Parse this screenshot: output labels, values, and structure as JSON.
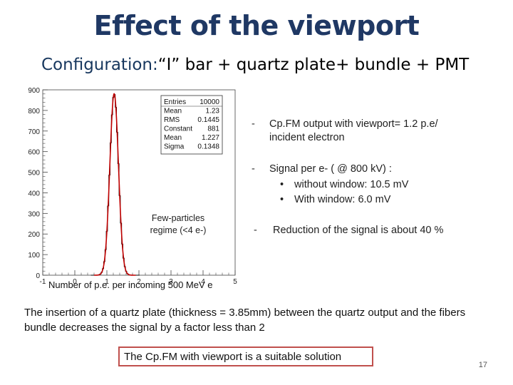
{
  "slide": {
    "title": "Effect of the viewport",
    "config_label": "Configuration:",
    "config_value": "“I” bar + quartz plate+ bundle + PMT",
    "page_number": "17"
  },
  "histogram": {
    "xlabel": "Number of p.e. per incoming 500 MeV e",
    "xlim": [
      -1,
      5
    ],
    "ylim": [
      0,
      900
    ],
    "x_ticks": [
      "-1",
      "0",
      "1",
      "2",
      "3",
      "4",
      "5"
    ],
    "y_ticks": [
      "0",
      "100",
      "200",
      "300",
      "400",
      "500",
      "600",
      "700",
      "800",
      "900"
    ],
    "stats": [
      {
        "name": "Entries",
        "value": "10000"
      },
      {
        "name": "Mean",
        "value": "1.23"
      },
      {
        "name": "RMS",
        "value": "0.1445"
      },
      {
        "name": "Constant",
        "value": "881"
      },
      {
        "name": "Mean",
        "value": "1.227"
      },
      {
        "name": "Sigma",
        "value": "0.1348"
      }
    ],
    "fit_color": "#c00000",
    "hist_color": "#000000",
    "peak_mean": 1.227,
    "peak_sigma": 0.1348,
    "peak_constant": 881
  },
  "annotation": {
    "few_particles": "Few-particles regime (<4 e-)"
  },
  "bullets": {
    "dash": "-",
    "b1_line1": "Cp.FM output with viewport= 1.2 p.e/",
    "b1_line2": "incident electron",
    "b2_line1": "Signal per e- ( @ 800 kV) :",
    "b2_sub1": "without window: 10.5 mV",
    "b2_sub2": "With window: 6.0 mV",
    "b3": "Reduction of the signal is about 40 %"
  },
  "body": {
    "insertion": "The insertion of a quartz plate (thickness = 3.85mm) between the quartz output and the fibers bundle decreases the signal by a factor less than 2",
    "conclusion": "The Cp.FM with viewport is a suitable solution"
  }
}
